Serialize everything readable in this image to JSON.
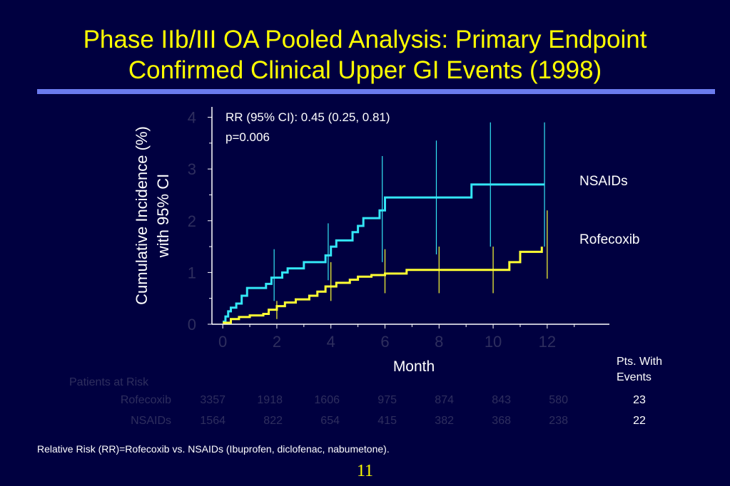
{
  "slide": {
    "title_line1": "Phase IIb/III OA Pooled Analysis: Primary Endpoint",
    "title_line2": "Confirmed Clinical Upper GI Events (1998)",
    "page_number": "11",
    "footnote": "Relative Risk (RR)=Rofecoxib vs. NSAIDs (Ibuprofen, diclofenac, nabumetone).",
    "stats_line1": "RR (95% CI): 0.45 (0.25, 0.81)",
    "stats_line2": "p=0.006"
  },
  "colors": {
    "background": "#000040",
    "title": "#FFFF00",
    "rule": "#6B7BEF",
    "nsaids": "#33E6F5",
    "rofecoxib": "#FFFF33",
    "dim_text": "#2E2E5E"
  },
  "pts_with_events": {
    "header_line1": "Pts. With",
    "header_line2": "Events",
    "rofecoxib": "23",
    "nsaids": "22"
  },
  "patients_at_risk": {
    "label": "Patients at Risk",
    "rows": [
      {
        "name": "Rofecoxib",
        "values": [
          "3357",
          "1918",
          "1606",
          "975",
          "874",
          "843",
          "580"
        ]
      },
      {
        "name": "NSAIDs",
        "values": [
          "1564",
          "822",
          "654",
          "415",
          "382",
          "368",
          "238"
        ]
      }
    ]
  },
  "chart_data": {
    "type": "line",
    "step": true,
    "xlabel": "Month",
    "ylabel_line1": "Cumulative Incidence (%)",
    "ylabel_line2": "with 95% CI",
    "xlim": [
      -0.4,
      14.3
    ],
    "ylim": [
      0,
      4.2
    ],
    "xticks": [
      0,
      2,
      4,
      6,
      8,
      10,
      12
    ],
    "yticks": [
      0,
      1,
      2,
      3,
      4
    ],
    "series": [
      {
        "name": "NSAIDs",
        "color": "#33E6F5",
        "x": [
          0,
          0.1,
          0.2,
          0.3,
          0.5,
          0.7,
          0.9,
          1.6,
          1.8,
          2.2,
          2.4,
          3.0,
          3.8,
          4.0,
          4.2,
          4.8,
          5.0,
          5.2,
          5.8,
          6.0,
          9.0,
          9.2,
          11.5,
          11.9
        ],
        "y": [
          0.05,
          0.15,
          0.25,
          0.32,
          0.4,
          0.55,
          0.7,
          0.78,
          0.9,
          1.0,
          1.08,
          1.2,
          1.33,
          1.5,
          1.62,
          1.78,
          1.9,
          2.05,
          2.2,
          2.45,
          2.45,
          2.7,
          2.7,
          2.7
        ]
      },
      {
        "name": "Rofecoxib",
        "color": "#FFFF33",
        "x": [
          0,
          0.3,
          0.6,
          1.0,
          1.5,
          1.7,
          2.0,
          2.3,
          2.7,
          3.2,
          3.5,
          3.8,
          4.2,
          4.7,
          5.0,
          5.5,
          6.0,
          6.8,
          10.3,
          10.6,
          11.0,
          11.8
        ],
        "y": [
          0.03,
          0.1,
          0.14,
          0.17,
          0.2,
          0.28,
          0.35,
          0.42,
          0.48,
          0.55,
          0.63,
          0.73,
          0.8,
          0.86,
          0.92,
          0.95,
          0.98,
          1.05,
          1.05,
          1.2,
          1.4,
          1.5
        ]
      }
    ],
    "error_bars": [
      {
        "series": "NSAIDs",
        "x": 1.9,
        "low": 0.45,
        "high": 1.45
      },
      {
        "series": "NSAIDs",
        "x": 3.9,
        "low": 0.85,
        "high": 1.95
      },
      {
        "series": "NSAIDs",
        "x": 5.9,
        "low": 1.2,
        "high": 3.25
      },
      {
        "series": "NSAIDs",
        "x": 7.9,
        "low": 1.35,
        "high": 3.55
      },
      {
        "series": "NSAIDs",
        "x": 9.9,
        "low": 1.5,
        "high": 3.9
      },
      {
        "series": "NSAIDs",
        "x": 11.9,
        "low": 1.5,
        "high": 3.9
      },
      {
        "series": "Rofecoxib",
        "x": 2.0,
        "low": 0.1,
        "high": 0.45
      },
      {
        "series": "Rofecoxib",
        "x": 4.0,
        "low": 0.45,
        "high": 1.2
      },
      {
        "series": "Rofecoxib",
        "x": 6.0,
        "low": 0.6,
        "high": 1.45
      },
      {
        "series": "Rofecoxib",
        "x": 8.0,
        "low": 0.6,
        "high": 1.5
      },
      {
        "series": "Rofecoxib",
        "x": 10.0,
        "low": 0.6,
        "high": 1.5
      },
      {
        "series": "Rofecoxib",
        "x": 12.0,
        "low": 0.88,
        "high": 2.2
      }
    ]
  }
}
